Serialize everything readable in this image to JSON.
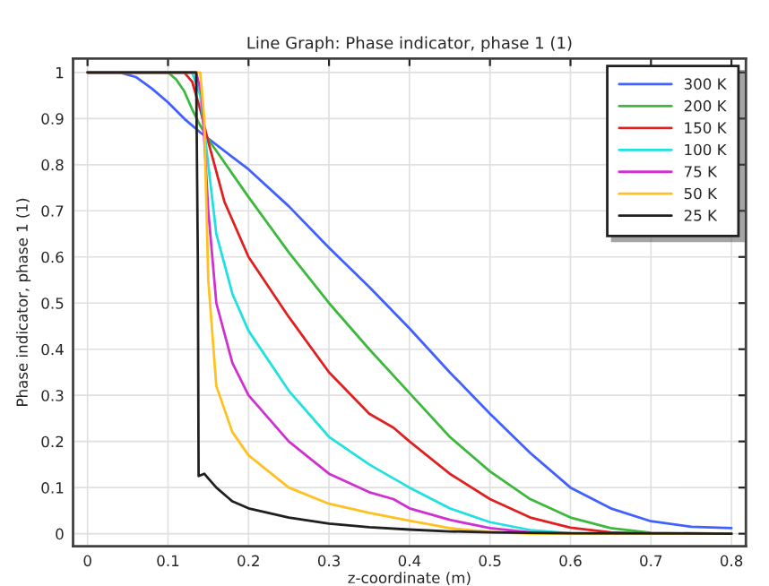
{
  "chart_data": {
    "type": "line",
    "title": "Line Graph: Phase indicator, phase 1 (1)",
    "xlabel": "z-coordinate (m)",
    "ylabel": "Phase indicator, phase 1 (1)",
    "xlim": [
      -0.018,
      0.818
    ],
    "ylim": [
      -0.027,
      1.03
    ],
    "xticks": [
      0,
      0.1,
      0.2,
      0.3,
      0.4,
      0.5,
      0.6,
      0.7,
      0.8
    ],
    "yticks": [
      0,
      0.1,
      0.2,
      0.3,
      0.4,
      0.5,
      0.6,
      0.7,
      0.8,
      0.9,
      1
    ],
    "grid": true,
    "legend": "top right",
    "line_style": "solid",
    "marker": "none",
    "series": [
      {
        "name": "300 K",
        "color": "#4060ff",
        "x": [
          0,
          0.04,
          0.06,
          0.08,
          0.1,
          0.12,
          0.14,
          0.2,
          0.25,
          0.3,
          0.35,
          0.4,
          0.45,
          0.5,
          0.55,
          0.6,
          0.65,
          0.7,
          0.75,
          0.8
        ],
        "values": [
          1,
          1.0,
          0.99,
          0.965,
          0.935,
          0.9,
          0.87,
          0.79,
          0.71,
          0.62,
          0.535,
          0.445,
          0.35,
          0.26,
          0.175,
          0.1,
          0.055,
          0.027,
          0.015,
          0.012
        ]
      },
      {
        "name": "200 K",
        "color": "#3cb83c",
        "x": [
          0,
          0.1,
          0.11,
          0.12,
          0.13,
          0.14,
          0.15,
          0.2,
          0.25,
          0.3,
          0.35,
          0.4,
          0.45,
          0.5,
          0.55,
          0.6,
          0.65,
          0.7,
          0.8
        ],
        "values": [
          1,
          1,
          0.985,
          0.96,
          0.92,
          0.885,
          0.855,
          0.73,
          0.61,
          0.5,
          0.4,
          0.305,
          0.21,
          0.135,
          0.075,
          0.035,
          0.012,
          0.002,
          0
        ]
      },
      {
        "name": "150 K",
        "color": "#e02020",
        "x": [
          0,
          0.12,
          0.13,
          0.14,
          0.15,
          0.17,
          0.2,
          0.25,
          0.3,
          0.35,
          0.38,
          0.4,
          0.45,
          0.5,
          0.55,
          0.6,
          0.65,
          0.7,
          0.8
        ],
        "values": [
          1,
          1,
          0.98,
          0.92,
          0.85,
          0.72,
          0.6,
          0.47,
          0.35,
          0.26,
          0.23,
          0.2,
          0.13,
          0.075,
          0.035,
          0.013,
          0.003,
          0,
          0
        ]
      },
      {
        "name": "100 K",
        "color": "#20e0e0",
        "x": [
          0,
          0.13,
          0.14,
          0.15,
          0.16,
          0.18,
          0.2,
          0.25,
          0.3,
          0.35,
          0.38,
          0.4,
          0.45,
          0.5,
          0.55,
          0.6,
          0.7,
          0.8
        ],
        "values": [
          1,
          1,
          0.95,
          0.8,
          0.65,
          0.52,
          0.44,
          0.31,
          0.21,
          0.15,
          0.12,
          0.1,
          0.055,
          0.025,
          0.008,
          0.001,
          0,
          0
        ]
      },
      {
        "name": "75 K",
        "color": "#d030d0",
        "x": [
          0,
          0.135,
          0.142,
          0.15,
          0.16,
          0.18,
          0.2,
          0.25,
          0.3,
          0.35,
          0.38,
          0.4,
          0.45,
          0.5,
          0.55,
          0.6,
          0.8
        ],
        "values": [
          1,
          1,
          0.95,
          0.7,
          0.5,
          0.37,
          0.3,
          0.2,
          0.13,
          0.09,
          0.075,
          0.055,
          0.03,
          0.012,
          0.003,
          0,
          0
        ]
      },
      {
        "name": "50 K",
        "color": "#ffc020",
        "x": [
          0,
          0.14,
          0.145,
          0.15,
          0.16,
          0.18,
          0.2,
          0.25,
          0.3,
          0.35,
          0.38,
          0.4,
          0.45,
          0.5,
          0.55,
          0.8
        ],
        "values": [
          1,
          1,
          0.9,
          0.55,
          0.32,
          0.22,
          0.17,
          0.1,
          0.065,
          0.045,
          0.035,
          0.028,
          0.012,
          0.004,
          0,
          0
        ]
      },
      {
        "name": "25 K",
        "color": "#202020",
        "x": [
          0,
          0.135,
          0.137,
          0.138,
          0.145,
          0.15,
          0.16,
          0.18,
          0.2,
          0.25,
          0.3,
          0.35,
          0.4,
          0.45,
          0.5,
          0.6,
          0.8
        ],
        "values": [
          1,
          1,
          0.6,
          0.125,
          0.13,
          0.12,
          0.1,
          0.07,
          0.055,
          0.035,
          0.022,
          0.014,
          0.009,
          0.005,
          0.003,
          0.001,
          0
        ]
      }
    ]
  }
}
